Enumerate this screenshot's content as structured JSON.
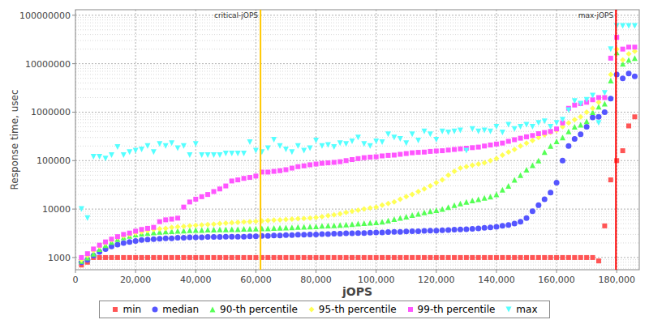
{
  "chart_data": {
    "type": "scatter",
    "x_label": "jOPS",
    "y_label": "Response time, usec",
    "log": "y",
    "grid": true,
    "legend": "bottom",
    "xlim": [
      0,
      187500
    ],
    "ylim": [
      560,
      130000000
    ],
    "xticks": [
      0,
      {
        "value": 20000,
        "label": "20,000"
      },
      {
        "value": 40000,
        "label": "40,000"
      },
      {
        "value": 60000,
        "label": "60,000"
      },
      {
        "value": 80000,
        "label": "80,000"
      },
      {
        "value": 100000,
        "label": "100,000"
      },
      {
        "value": 120000,
        "label": "120,000"
      },
      {
        "value": 140000,
        "label": "140,000"
      },
      {
        "value": 160000,
        "label": "160,000"
      },
      {
        "value": 180000,
        "label": "180,000"
      }
    ],
    "yticks": [
      1000,
      10000,
      100000,
      1000000,
      10000000,
      100000000
    ],
    "annotations": [
      {
        "label": "critical-jOPS",
        "x": 61540,
        "color": "#ffc800"
      },
      {
        "label": "max-jOPS",
        "x": 179750,
        "color": "#ff0000"
      }
    ],
    "x": [
      2000,
      4000,
      6000,
      8000,
      10000,
      12000,
      14000,
      16000,
      18000,
      20000,
      22000,
      24000,
      26000,
      28000,
      30000,
      32000,
      34000,
      36000,
      38000,
      40000,
      42000,
      44000,
      46000,
      48000,
      50000,
      52000,
      54000,
      56000,
      58000,
      60000,
      62000,
      64000,
      66000,
      68000,
      70000,
      72000,
      74000,
      76000,
      78000,
      80000,
      82000,
      84000,
      86000,
      88000,
      90000,
      92000,
      94000,
      96000,
      98000,
      100000,
      102000,
      104000,
      106000,
      108000,
      110000,
      112000,
      114000,
      116000,
      118000,
      120000,
      122000,
      124000,
      126000,
      128000,
      130000,
      132000,
      134000,
      136000,
      138000,
      140000,
      142000,
      144000,
      146000,
      148000,
      150000,
      152000,
      154000,
      156000,
      158000,
      160000,
      162000,
      164000,
      166000,
      168000,
      170000,
      172000,
      174000,
      176000,
      178000,
      180000,
      182000,
      184000,
      186000
    ],
    "series": [
      {
        "name": "min",
        "color": "#ff5555",
        "marker": "square",
        "values": [
          700,
          800,
          1000,
          1000,
          1000,
          1000,
          1000,
          1000,
          1000,
          1000,
          1000,
          1000,
          1000,
          1000,
          1000,
          1000,
          1000,
          1000,
          1000,
          1000,
          1000,
          1000,
          1000,
          1000,
          1000,
          1000,
          1000,
          1000,
          1000,
          1000,
          1000,
          1000,
          1000,
          1000,
          1000,
          1000,
          1000,
          1000,
          1000,
          1000,
          1000,
          1000,
          1000,
          1000,
          1000,
          1000,
          1000,
          1000,
          1000,
          1000,
          1000,
          1000,
          1000,
          1000,
          1000,
          1000,
          1000,
          1000,
          1000,
          1000,
          1000,
          1000,
          1000,
          1000,
          1000,
          1000,
          1000,
          1000,
          1000,
          1000,
          1000,
          1000,
          1000,
          1000,
          1000,
          1000,
          1000,
          1000,
          1000,
          1000,
          1000,
          1000,
          1000,
          1000,
          1000,
          1000,
          850,
          4500,
          40000,
          100000,
          160000,
          520000,
          800000
        ]
      },
      {
        "name": "median",
        "color": "#5555ff",
        "marker": "circle",
        "values": [
          800,
          900,
          1100,
          1300,
          1500,
          1700,
          1850,
          2000,
          2100,
          2200,
          2300,
          2350,
          2400,
          2450,
          2500,
          2500,
          2550,
          2550,
          2600,
          2600,
          2600,
          2650,
          2650,
          2650,
          2700,
          2700,
          2700,
          2700,
          2750,
          2750,
          2800,
          2800,
          2850,
          2850,
          2900,
          2900,
          2950,
          2950,
          3000,
          3000,
          3050,
          3050,
          3100,
          3100,
          3150,
          3150,
          3200,
          3200,
          3250,
          3300,
          3300,
          3350,
          3400,
          3400,
          3450,
          3500,
          3500,
          3550,
          3600,
          3600,
          3650,
          3700,
          3750,
          3800,
          3850,
          3900,
          4000,
          4100,
          4200,
          4300,
          4500,
          4700,
          5000,
          5500,
          6500,
          9000,
          12000,
          16000,
          22000,
          35000,
          100000,
          200000,
          280000,
          350000,
          500000,
          780000,
          800000,
          1000000,
          1900000,
          6000000,
          5000000,
          6300000,
          5500000
        ]
      },
      {
        "name": "90-th percentile",
        "color": "#55ff55",
        "marker": "triangle",
        "values": [
          850,
          1000,
          1200,
          1500,
          1800,
          2100,
          2400,
          2600,
          2800,
          3000,
          3100,
          3200,
          3300,
          3400,
          3450,
          3500,
          3550,
          3600,
          3650,
          3700,
          3700,
          3750,
          3750,
          3800,
          3800,
          3850,
          3850,
          3900,
          3900,
          3950,
          4000,
          4000,
          4050,
          4100,
          4150,
          4200,
          4250,
          4300,
          4350,
          4400,
          4500,
          4550,
          4600,
          4700,
          4800,
          4900,
          5000,
          5100,
          5200,
          5300,
          5500,
          5800,
          6200,
          6600,
          7000,
          7500,
          8000,
          8500,
          9000,
          9500,
          10000,
          11000,
          12000,
          13000,
          14000,
          15000,
          16000,
          17000,
          18000,
          20000,
          25000,
          30000,
          40000,
          50000,
          65000,
          80000,
          100000,
          150000,
          200000,
          250000,
          300000,
          400000,
          500000,
          550000,
          650000,
          1000000,
          1300000,
          1500000,
          4500000,
          17000000,
          10000000,
          12000000,
          13000000
        ]
      },
      {
        "name": "95-th percentile",
        "color": "#ffff55",
        "marker": "diamond",
        "values": [
          900,
          1100,
          1400,
          1700,
          2000,
          2300,
          2600,
          2800,
          3000,
          3200,
          3400,
          3600,
          3800,
          3900,
          4000,
          4200,
          4300,
          4400,
          4500,
          4600,
          4700,
          4800,
          4900,
          5000,
          5100,
          5200,
          5300,
          5400,
          5500,
          5600,
          5700,
          5800,
          5900,
          6000,
          6100,
          6200,
          6300,
          6400,
          6500,
          6700,
          7000,
          7300,
          7600,
          8000,
          8500,
          9000,
          9500,
          10000,
          10500,
          11000,
          12000,
          13000,
          14000,
          16000,
          18000,
          20000,
          23000,
          26000,
          30000,
          35000,
          40000,
          50000,
          60000,
          70000,
          75000,
          80000,
          85000,
          90000,
          100000,
          110000,
          130000,
          150000,
          170000,
          200000,
          230000,
          260000,
          300000,
          340000,
          380000,
          420000,
          500000,
          600000,
          700000,
          800000,
          1000000,
          1200000,
          1600000,
          2000000,
          6000000,
          20000000,
          12000000,
          16000000,
          18000000
        ]
      },
      {
        "name": "99-th percentile",
        "color": "#ff55ff",
        "marker": "square",
        "values": [
          1000,
          1200,
          1500,
          1800,
          2100,
          2400,
          2700,
          3000,
          3200,
          3500,
          3800,
          4000,
          4200,
          5500,
          6000,
          6200,
          6500,
          11000,
          14000,
          16000,
          18000,
          20000,
          23000,
          26000,
          30000,
          38000,
          40000,
          43000,
          45000,
          48000,
          58000,
          58000,
          60000,
          62000,
          65000,
          70000,
          75000,
          78000,
          82000,
          85000,
          88000,
          90000,
          92000,
          95000,
          100000,
          105000,
          110000,
          115000,
          118000,
          120000,
          125000,
          128000,
          130000,
          135000,
          140000,
          145000,
          148000,
          150000,
          155000,
          158000,
          160000,
          165000,
          170000,
          175000,
          180000,
          185000,
          190000,
          200000,
          210000,
          220000,
          230000,
          250000,
          270000,
          290000,
          310000,
          330000,
          360000,
          380000,
          400000,
          450000,
          600000,
          1200000,
          1400000,
          1500000,
          1600000,
          1800000,
          2000000,
          2000000,
          13000000,
          35000000,
          20000000,
          22000000,
          22000000
        ]
      },
      {
        "name": "max",
        "color": "#55ffff",
        "marker": "triangle-down",
        "values": [
          10000,
          6500,
          120000,
          120000,
          110000,
          130000,
          190000,
          130000,
          150000,
          160000,
          170000,
          200000,
          150000,
          220000,
          200000,
          230000,
          180000,
          200000,
          130000,
          220000,
          130000,
          130000,
          130000,
          130000,
          140000,
          140000,
          140000,
          140000,
          240000,
          160000,
          150000,
          180000,
          270000,
          200000,
          170000,
          150000,
          200000,
          160000,
          180000,
          260000,
          200000,
          210000,
          190000,
          230000,
          220000,
          250000,
          300000,
          220000,
          200000,
          250000,
          240000,
          350000,
          300000,
          280000,
          230000,
          350000,
          260000,
          400000,
          350000,
          270000,
          400000,
          380000,
          400000,
          420000,
          160000,
          450000,
          400000,
          420000,
          400000,
          500000,
          380000,
          550000,
          450000,
          500000,
          550000,
          500000,
          600000,
          650000,
          500000,
          600000,
          700000,
          1100000,
          1700000,
          1500000,
          1800000,
          2200000,
          600000,
          2500000,
          20000000,
          60000000,
          60000000,
          60000000,
          60000000
        ]
      }
    ]
  }
}
